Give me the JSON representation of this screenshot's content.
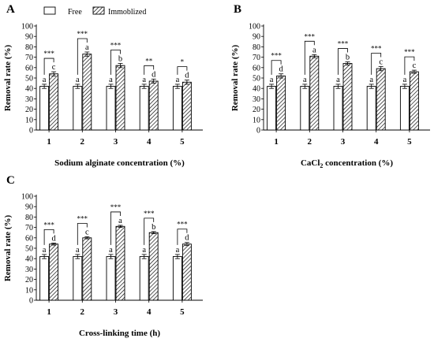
{
  "legend": [
    {
      "label": "Free",
      "pattern": "plain"
    },
    {
      "label": "Immoblized",
      "pattern": "hatched"
    }
  ],
  "chart_data": [
    {
      "type": "bar",
      "panel": "A",
      "xlabel": "Sodium alginate concentration (%)",
      "ylabel": "Removal rate (%)",
      "ylim": [
        0,
        100
      ],
      "yticks": [
        0,
        10,
        20,
        30,
        40,
        50,
        60,
        70,
        80,
        90,
        100
      ],
      "categories": [
        "1",
        "2",
        "3",
        "4",
        "5"
      ],
      "series": [
        {
          "name": "Free",
          "values": [
            42,
            42,
            42,
            42,
            42
          ],
          "errors": [
            2,
            2,
            2,
            2,
            2
          ],
          "letters": [
            "a",
            "a",
            "a",
            "a",
            "a"
          ]
        },
        {
          "name": "Immoblized",
          "values": [
            54,
            73,
            62,
            47,
            46
          ],
          "errors": [
            2,
            2,
            2,
            2,
            2
          ],
          "letters": [
            "c",
            "a",
            "b",
            "d",
            "d"
          ]
        }
      ],
      "significance": [
        "***",
        "***",
        "***",
        "**",
        "*"
      ]
    },
    {
      "type": "bar",
      "panel": "B",
      "xlabel": "CaCl₂ concentration (%)",
      "ylabel": "Removal rate (%)",
      "ylim": [
        0,
        100
      ],
      "yticks": [
        0,
        10,
        20,
        30,
        40,
        50,
        60,
        70,
        80,
        90,
        100
      ],
      "categories": [
        "1",
        "2",
        "3",
        "4",
        "5"
      ],
      "series": [
        {
          "name": "Free",
          "values": [
            42,
            42,
            42,
            42,
            42
          ],
          "errors": [
            2,
            2,
            2,
            2,
            2
          ],
          "letters": [
            "a",
            "a",
            "a",
            "a",
            "a"
          ]
        },
        {
          "name": "Immoblized",
          "values": [
            52,
            71,
            64,
            59,
            56
          ],
          "errors": [
            2,
            1.5,
            1.5,
            2,
            1.5
          ],
          "letters": [
            "d",
            "a",
            "b",
            "c",
            "c"
          ]
        }
      ],
      "significance": [
        "***",
        "***",
        "***",
        "***",
        "***"
      ]
    },
    {
      "type": "bar",
      "panel": "C",
      "xlabel": "Cross-linking time (h)",
      "ylabel": "Removal rate (%)",
      "ylim": [
        0,
        100
      ],
      "yticks": [
        0,
        10,
        20,
        30,
        40,
        50,
        60,
        70,
        80,
        90,
        100
      ],
      "categories": [
        "1",
        "2",
        "3",
        "4",
        "5"
      ],
      "series": [
        {
          "name": "Free",
          "values": [
            42,
            42,
            42,
            42,
            42
          ],
          "errors": [
            2,
            2,
            2,
            2,
            2
          ],
          "letters": [
            "a",
            "a",
            "a",
            "a",
            "a"
          ]
        },
        {
          "name": "Immoblized",
          "values": [
            54,
            60,
            71,
            65,
            54
          ],
          "errors": [
            1,
            1,
            1,
            1,
            1.5
          ],
          "letters": [
            "d",
            "c",
            "a",
            "b",
            "d"
          ]
        }
      ],
      "significance": [
        "***",
        "***",
        "***",
        "***",
        "***"
      ]
    }
  ]
}
